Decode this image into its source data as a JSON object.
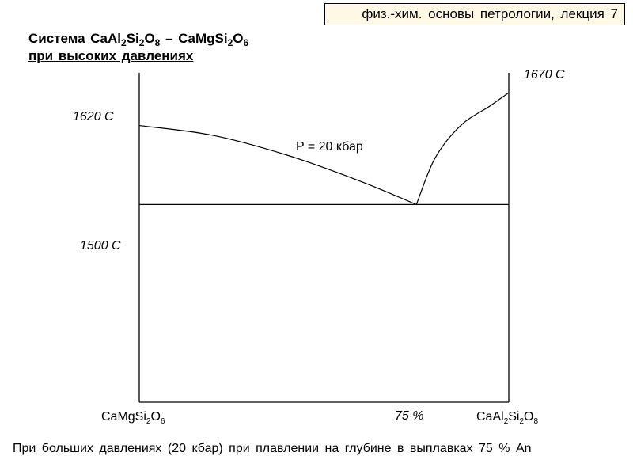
{
  "header_badge": "физ.-хим.  основы петрологии,  лекция 7",
  "title": {
    "line1_parts": [
      "Система CaAl",
      "2",
      "Si",
      "2",
      "O",
      "8",
      " – CaMgSi",
      "2",
      "O",
      "6"
    ],
    "line2": "при высоких давлениях"
  },
  "caption": "При больших давлениях (20 кбар) при плавлении  на глубине  в выплавках 75 % An",
  "chart_data": {
    "type": "line",
    "title": "",
    "x_axis": {
      "left_label_parts": [
        "CaMgSi",
        "2",
        "O",
        "6"
      ],
      "right_label_parts": [
        "CaAl",
        "2",
        "Si",
        "2",
        "O",
        "8"
      ],
      "tick_label": "75 %",
      "range": [
        0,
        100
      ]
    },
    "temperature_labels": {
      "left_top": "1620 C",
      "right_top": "1670 C",
      "eutectic": "1500 C"
    },
    "ylim": [
      1200,
      1700
    ],
    "pressure_label": "P = 20 кбар",
    "eutectic": {
      "x": 75,
      "t": 1500
    },
    "series": [
      {
        "values": [
          [
            0,
            1620
          ],
          [
            20,
            1605
          ],
          [
            40,
            1575
          ],
          [
            60,
            1535
          ],
          [
            75,
            1500
          ]
        ]
      },
      {
        "values": [
          [
            75,
            1500
          ],
          [
            80,
            1570
          ],
          [
            87,
            1620
          ],
          [
            95,
            1650
          ],
          [
            100,
            1670
          ]
        ]
      }
    ],
    "solidus": {
      "values": [
        [
          0,
          1500
        ],
        [
          100,
          1500
        ]
      ]
    }
  }
}
